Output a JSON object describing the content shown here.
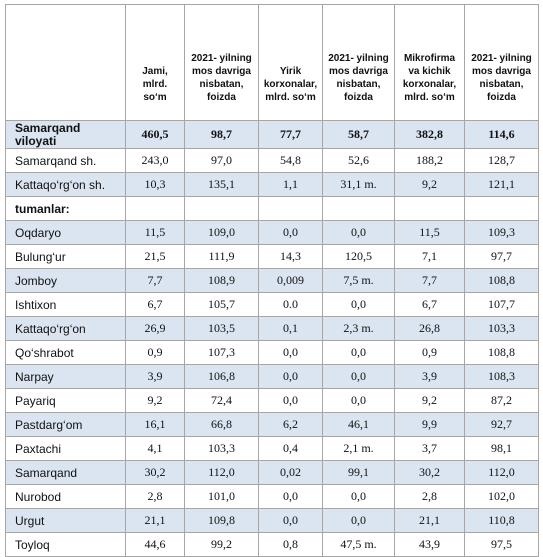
{
  "table": {
    "header": [
      "Jami, mlrd. so‘m",
      "2021- yilning mos davriga nisbatan, foizda",
      "Yirik korxonalar, mlrd. so‘m",
      "2021- yilning mos davriga nisbatan, foizda",
      "Mikrofirma va kichik korxonalar, mlrd. so‘m",
      "2021- yilning mos davriga nisbatan, foizda"
    ],
    "rows": [
      [
        "Samarqand viloyati",
        "460,5",
        "98,7",
        "77,7",
        "58,7",
        "382,8",
        "114,6"
      ],
      [
        "Samarqand sh.",
        "243,0",
        "97,0",
        "54,8",
        "52,6",
        "188,2",
        "128,7"
      ],
      [
        "Kattaqo‘rg‘on  sh.",
        "10,3",
        "135,1",
        "1,1",
        "31,1 m.",
        "9,2",
        "121,1"
      ],
      [
        "tumanlar:"
      ],
      [
        "Oqdaryo",
        "11,5",
        "109,0",
        "0,0",
        "0,0",
        "11,5",
        "109,3"
      ],
      [
        "Bulung‘ur",
        "21,5",
        "111,9",
        "14,3",
        "120,5",
        "7,1",
        "97,7"
      ],
      [
        "Jomboy",
        "7,7",
        "108,9",
        "0,009",
        "7,5 m.",
        "7,7",
        "108,8"
      ],
      [
        "Ishtixon",
        "6,7",
        "105,7",
        "0.0",
        "0,0",
        "6,7",
        "107,7"
      ],
      [
        "Kattaqo‘rg‘on",
        "26,9",
        "103,5",
        "0,1",
        "2,3 m.",
        "26,8",
        "103,3"
      ],
      [
        "Qo‘shrabot",
        "0,9",
        "107,3",
        "0,0",
        "0,0",
        "0,9",
        "108,8"
      ],
      [
        "Narpay",
        "3,9",
        "106,8",
        "0,0",
        "0,0",
        "3,9",
        "108,3"
      ],
      [
        "Payariq",
        "9,2",
        "72,4",
        "0,0",
        "0,0",
        "9,2",
        "87,2"
      ],
      [
        "Pastdarg‘om",
        "16,1",
        "66,8",
        "6,2",
        "46,1",
        "9,9",
        "92,7"
      ],
      [
        "Paxtachi",
        "4,1",
        "103,3",
        "0,4",
        "2,1 m.",
        "3,7",
        "98,1"
      ],
      [
        "Samarqand",
        "30,2",
        "112,0",
        "0,02",
        "99,1",
        "30,2",
        "112,0"
      ],
      [
        "Nurobod",
        "2,8",
        "101,0",
        "0,0",
        "0,0",
        "2,8",
        "102,0"
      ],
      [
        "Urgut",
        "21,1",
        "109,8",
        "0,0",
        "0,0",
        "21,1",
        "110,8"
      ],
      [
        "Toyloq",
        "44,6",
        "99,2",
        "0,8",
        "47,5  m.",
        "43,9",
        "97,5"
      ]
    ]
  }
}
